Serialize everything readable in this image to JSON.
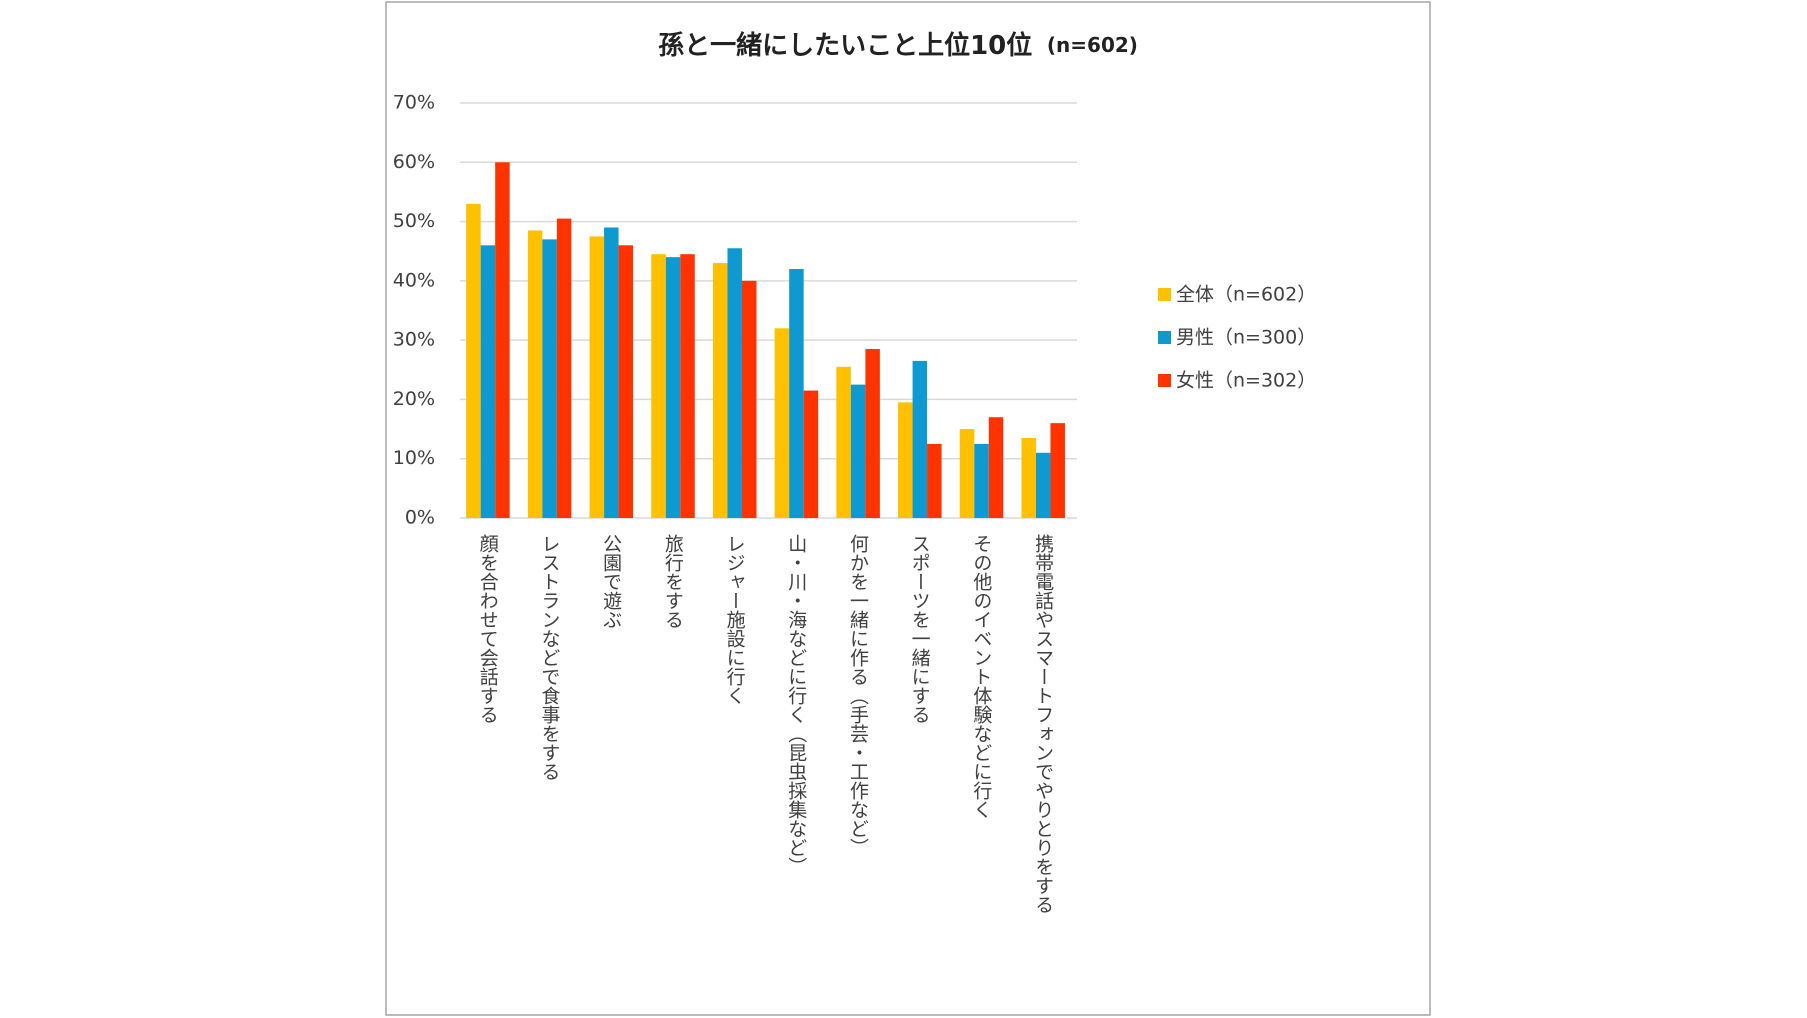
{
  "chart_data": {
    "type": "bar",
    "title": "孫と一緒にしたいこと上位10位",
    "subtitle": "(n=602)",
    "categories": [
      "顔を合わせて会話する",
      "レストランなどで食事をする",
      "公園で遊ぶ",
      "旅行をする",
      "レジャー施設に行く",
      "山・川・海などに行く（昆虫採集など）",
      "何かを一緒に作る（手芸・工作など）",
      "スポーツを一緒にする",
      "その他のイベント体験などに行く",
      "携帯電話やスマートフォンでやりとりをする"
    ],
    "series": [
      {
        "name": "全体（n=602）",
        "color": "#FFC000",
        "values": [
          53,
          48.5,
          47.5,
          44.5,
          43,
          32,
          25.5,
          19.5,
          15,
          13.5
        ]
      },
      {
        "name": "男性（n=300）",
        "color": "#0E9AD0",
        "values": [
          46,
          47,
          49,
          44,
          45.5,
          42,
          22.5,
          26.5,
          12.5,
          11
        ]
      },
      {
        "name": "女性（n=302）",
        "color": "#FF3300",
        "values": [
          60,
          50.5,
          46,
          44.5,
          40,
          21.5,
          28.5,
          12.5,
          17,
          16
        ]
      }
    ],
    "ylim": [
      0,
      70
    ],
    "yticks": [
      {
        "value": 0,
        "label": "0%"
      },
      {
        "value": 10,
        "label": "10%"
      },
      {
        "value": 20,
        "label": "20%"
      },
      {
        "value": 30,
        "label": "30%"
      },
      {
        "value": 40,
        "label": "40%"
      },
      {
        "value": 50,
        "label": "50%"
      },
      {
        "value": 60,
        "label": "60%"
      },
      {
        "value": 70,
        "label": "70%"
      }
    ],
    "grid": true,
    "legend": "right"
  }
}
